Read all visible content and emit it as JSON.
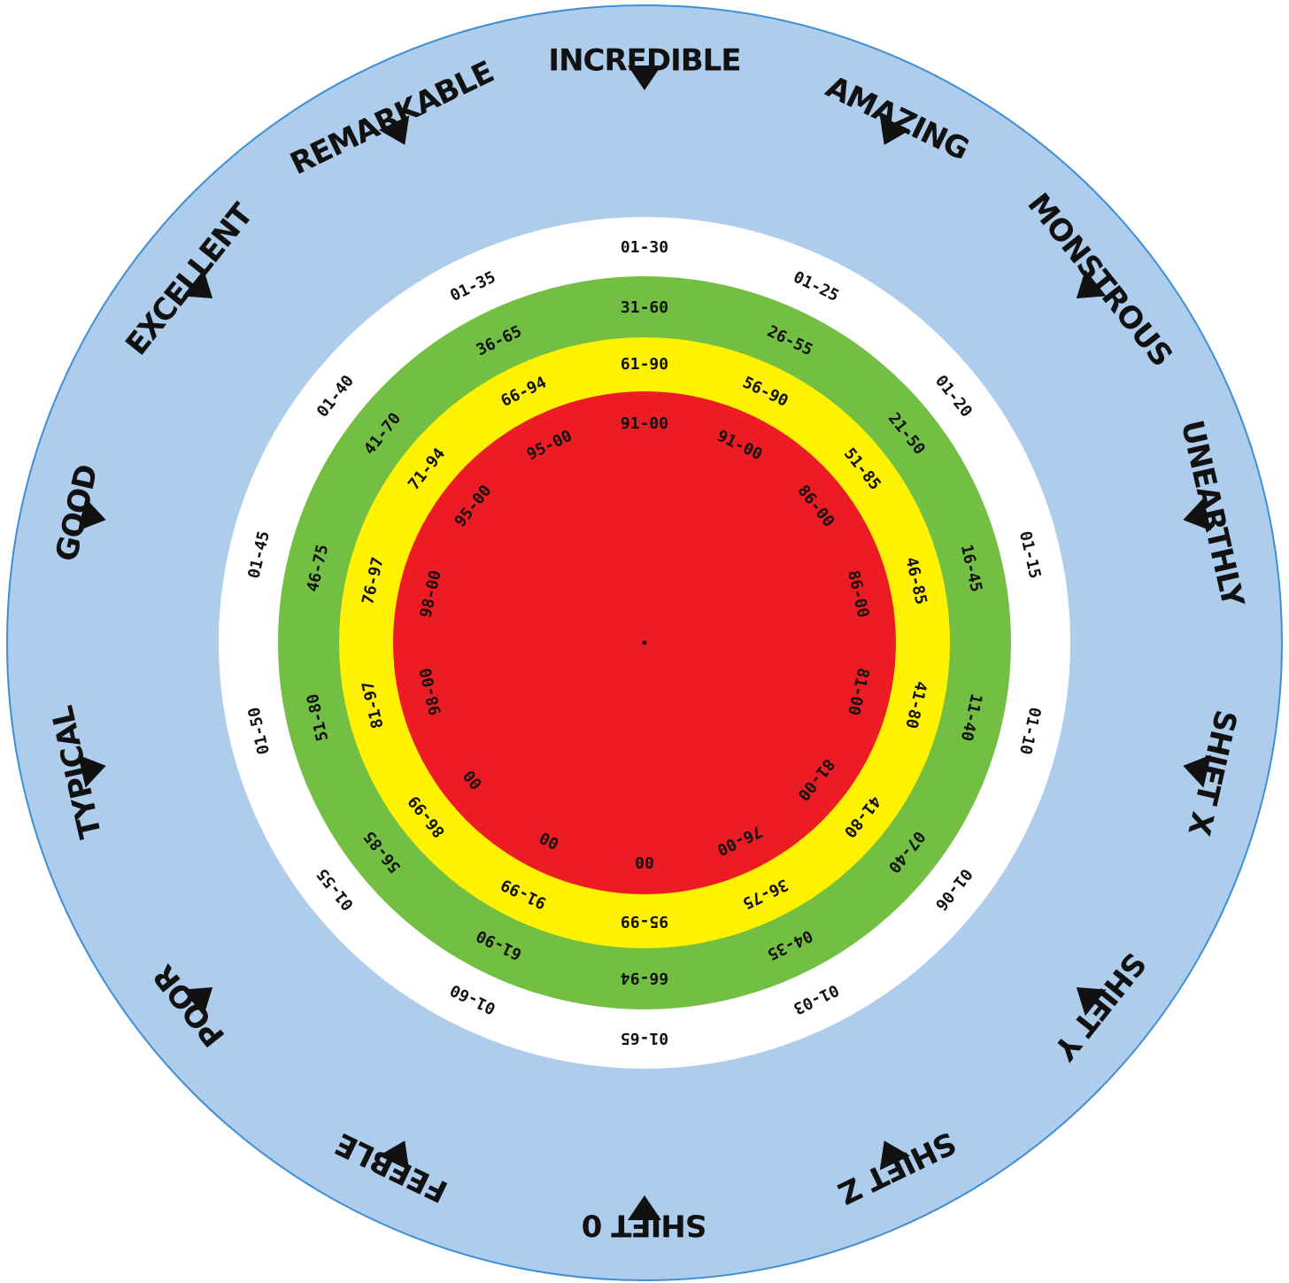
{
  "colors": {
    "outer": "#aecdec",
    "outer_stroke": "#3f8fd4",
    "white": "#ffffff",
    "green": "#72bf44",
    "yellow": "#fff200",
    "red": "#ed1c24",
    "ink": "#111111"
  },
  "ranks": [
    "INCREDIBLE",
    "AMAZING",
    "MONSTROUS",
    "UNEARTHLY",
    "SHIFT X",
    "SHIFT Y",
    "SHIFT Z",
    "SHIFT 0",
    "FEEBLE",
    "POOR",
    "TYPICAL",
    "GOOD",
    "EXCELLENT",
    "REMARKABLE"
  ],
  "rings": {
    "white": [
      "01-30",
      "01-25",
      "01-20",
      "01-15",
      "01-10",
      "01-06",
      "01-03",
      "01-65",
      "01-60",
      "01-55",
      "01-50",
      "01-45",
      "01-40",
      "01-35"
    ],
    "green": [
      "31-60",
      "26-55",
      "21-50",
      "16-45",
      "11-40",
      "07-40",
      "04-35",
      "66-94",
      "61-90",
      "56-85",
      "51-80",
      "46-75",
      "41-70",
      "36-65"
    ],
    "yellow": [
      "61-90",
      "56-90",
      "51-85",
      "46-85",
      "41-80",
      "41-80",
      "36-75",
      "95-99",
      "91-99",
      "86-99",
      "81-97",
      "76-97",
      "71-94",
      "66-94"
    ],
    "red": [
      "91-00",
      "91-00",
      "86-00",
      "86-00",
      "81-00",
      "81-00",
      "76-00",
      "00",
      "00",
      "00",
      "98-00",
      "98-00",
      "95-00",
      "95-00"
    ]
  }
}
